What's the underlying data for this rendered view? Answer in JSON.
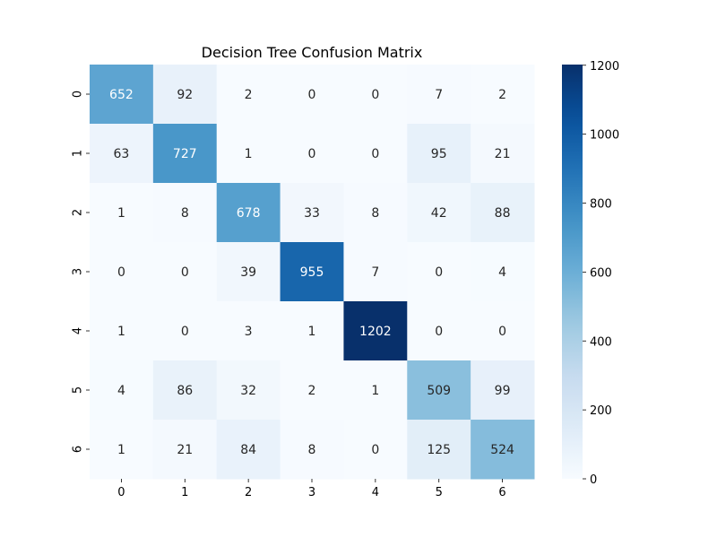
{
  "chart_data": {
    "type": "heatmap",
    "title": "Decision Tree Confusion Matrix",
    "xlabel": "",
    "ylabel": "",
    "x_labels": [
      "0",
      "1",
      "2",
      "3",
      "4",
      "5",
      "6"
    ],
    "y_labels": [
      "0",
      "1",
      "2",
      "3",
      "4",
      "5",
      "6"
    ],
    "matrix": [
      [
        652,
        92,
        2,
        0,
        0,
        7,
        2
      ],
      [
        63,
        727,
        1,
        0,
        0,
        95,
        21
      ],
      [
        1,
        8,
        678,
        33,
        8,
        42,
        88
      ],
      [
        0,
        0,
        39,
        955,
        7,
        0,
        4
      ],
      [
        1,
        0,
        3,
        1,
        1202,
        0,
        0
      ],
      [
        4,
        86,
        32,
        2,
        1,
        509,
        99
      ],
      [
        1,
        21,
        84,
        8,
        0,
        125,
        524
      ]
    ],
    "colorbar": {
      "min": 0,
      "max": 1202,
      "ticks": [
        "0",
        "200",
        "400",
        "600",
        "800",
        "1000",
        "1200"
      ],
      "colormap": "Blues",
      "colormap_low": "#f7fbff",
      "colormap_high": "#08306b"
    },
    "annotation_light_color": "#ffffff",
    "annotation_dark_color": "#262626"
  }
}
